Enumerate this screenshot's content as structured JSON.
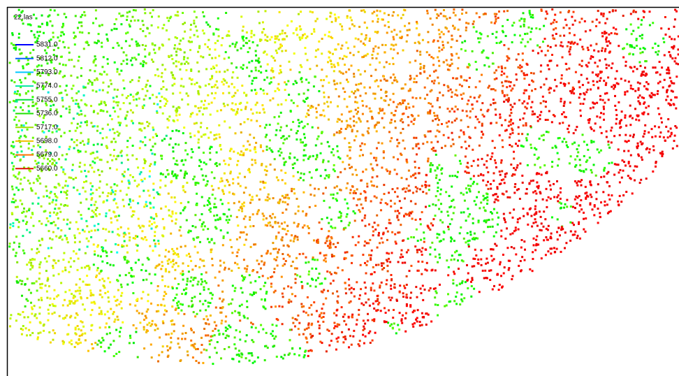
{
  "view": {
    "title": "22.las",
    "legend": [
      {
        "label": "5831.0",
        "color": "#0000ff"
      },
      {
        "label": "5812.0",
        "color": "#0060ff"
      },
      {
        "label": "5793.0",
        "color": "#00c8ff"
      },
      {
        "label": "5774.0",
        "color": "#00e8a0"
      },
      {
        "label": "5755.0",
        "color": "#00e040"
      },
      {
        "label": "5736.0",
        "color": "#20e000"
      },
      {
        "label": "5717.0",
        "color": "#a0e000"
      },
      {
        "label": "5698.0",
        "color": "#f0c000"
      },
      {
        "label": "5679.0",
        "color": "#ff7000"
      },
      {
        "label": "5660.0",
        "color": "#e01000"
      }
    ]
  }
}
